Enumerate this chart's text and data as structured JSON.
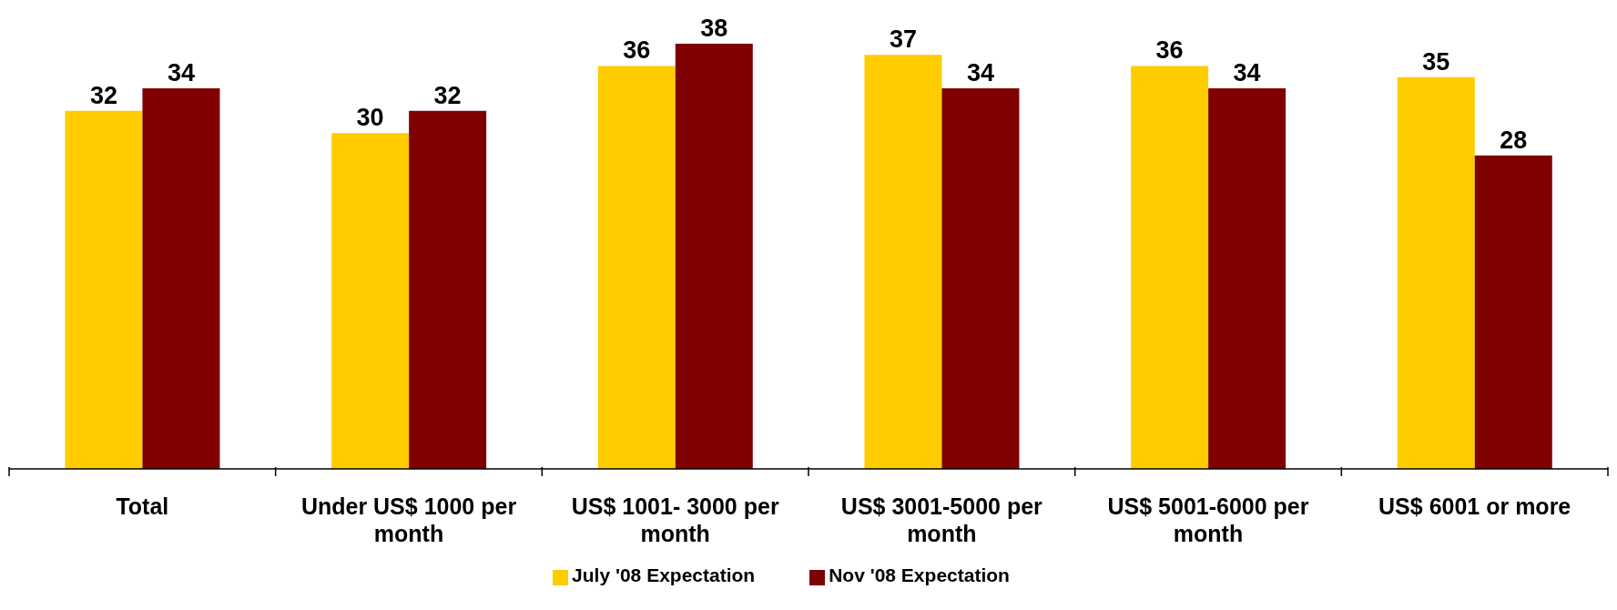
{
  "chart_data": {
    "type": "bar",
    "categories": [
      "Total",
      "Under US$ 1000 per month",
      "US$ 1001- 3000 per month",
      "US$ 3001-5000 per month",
      "US$ 5001-6000 per month",
      "US$ 6001 or more"
    ],
    "series": [
      {
        "name": "July '08 Expectation",
        "color": "#ffcc00",
        "values": [
          32,
          30,
          36,
          37,
          36,
          35
        ]
      },
      {
        "name": "Nov '08 Expectation",
        "color": "#800000",
        "values": [
          34,
          32,
          38,
          34,
          34,
          28
        ]
      }
    ],
    "ylim": [
      0,
      41
    ],
    "tick_labels": "x",
    "data_labels": true,
    "legend": "bottom"
  }
}
